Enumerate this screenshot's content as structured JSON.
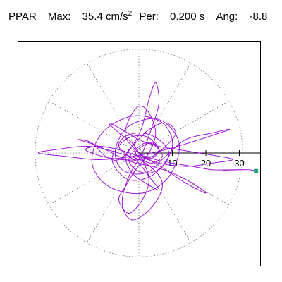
{
  "header": {
    "station_label": "PPAR",
    "max_label": "Max:",
    "max_value": "35.4 cm/s",
    "max_unit_exp": "2",
    "per_label": "Per:",
    "per_value": "0.200 s",
    "ang_label": "Ang:",
    "ang_value": "-8.8"
  },
  "chart_data": {
    "type": "polar-hodogram",
    "title": "",
    "xlabel": "",
    "ylabel": "",
    "radial_ticks": [
      10,
      20,
      30
    ],
    "radial_tick_labels": [
      "10",
      "20",
      "30"
    ],
    "radial_range": [
      0,
      31
    ],
    "grid": {
      "rings": [
        10,
        20,
        30
      ],
      "spoke_step_deg": 30,
      "style": "dotted"
    },
    "max": 35.4,
    "max_unit": "cm/s²",
    "period_s": 0.2,
    "angle_deg": -8.8,
    "trace_color": "#9400D3",
    "marker_color": "#20A080",
    "end_point": [
      35.4,
      -8.8
    ],
    "trace_points": [
      [
        0,
        0
      ],
      [
        3,
        -2
      ],
      [
        6,
        1
      ],
      [
        2,
        5
      ],
      [
        -4,
        4
      ],
      [
        -8,
        -2
      ],
      [
        -3,
        -8
      ],
      [
        5,
        -6
      ],
      [
        10,
        2
      ],
      [
        7,
        9
      ],
      [
        -2,
        11
      ],
      [
        -11,
        6
      ],
      [
        -14,
        -3
      ],
      [
        -9,
        -10
      ],
      [
        1,
        -12
      ],
      [
        9,
        -7
      ],
      [
        12,
        3
      ],
      [
        6,
        10
      ],
      [
        -3,
        8
      ],
      [
        -7,
        1
      ],
      [
        -5,
        -5
      ],
      [
        2,
        -6
      ],
      [
        8,
        -1
      ],
      [
        14,
        4
      ],
      [
        22,
        6
      ],
      [
        27,
        7
      ],
      [
        18,
        4
      ],
      [
        8,
        1
      ],
      [
        -2,
        -1
      ],
      [
        -12,
        -2
      ],
      [
        -22,
        -1
      ],
      [
        -30,
        0
      ],
      [
        -25,
        1
      ],
      [
        -15,
        2
      ],
      [
        -6,
        0
      ],
      [
        2,
        -3
      ],
      [
        7,
        -9
      ],
      [
        4,
        -16
      ],
      [
        -2,
        -20
      ],
      [
        -5,
        -15
      ],
      [
        -3,
        -7
      ],
      [
        1,
        0
      ],
      [
        4,
        8
      ],
      [
        6,
        15
      ],
      [
        5,
        21
      ],
      [
        3,
        16
      ],
      [
        1,
        8
      ],
      [
        -2,
        2
      ],
      [
        -6,
        -2
      ],
      [
        -10,
        -1
      ],
      [
        -14,
        3
      ],
      [
        -18,
        4
      ],
      [
        -12,
        2
      ],
      [
        -6,
        -1
      ],
      [
        -1,
        -3
      ],
      [
        4,
        -4
      ],
      [
        10,
        -6
      ],
      [
        16,
        -9
      ],
      [
        20,
        -12
      ],
      [
        14,
        -9
      ],
      [
        8,
        -5
      ],
      [
        3,
        -2
      ],
      [
        -1,
        1
      ],
      [
        -4,
        5
      ],
      [
        -3,
        10
      ],
      [
        0,
        14
      ],
      [
        3,
        12
      ],
      [
        5,
        6
      ],
      [
        3,
        0
      ],
      [
        -1,
        -5
      ],
      [
        -4,
        -10
      ],
      [
        -6,
        -14
      ],
      [
        -3,
        -18
      ],
      [
        1,
        -14
      ],
      [
        3,
        -8
      ],
      [
        1,
        -2
      ],
      [
        -2,
        3
      ],
      [
        -6,
        6
      ],
      [
        -9,
        9
      ],
      [
        -5,
        7
      ],
      [
        0,
        4
      ],
      [
        6,
        2
      ],
      [
        12,
        1
      ],
      [
        18,
        0
      ],
      [
        24,
        -1
      ],
      [
        28,
        -2
      ],
      [
        22,
        -3
      ],
      [
        14,
        -4
      ],
      [
        6,
        -3
      ],
      [
        0,
        -1
      ],
      [
        -6,
        1
      ],
      [
        -12,
        2
      ],
      [
        -16,
        1
      ],
      [
        -11,
        -1
      ],
      [
        -5,
        -2
      ],
      [
        0,
        -2
      ],
      [
        4,
        -1
      ],
      [
        8,
        2
      ],
      [
        11,
        6
      ],
      [
        8,
        9
      ],
      [
        3,
        7
      ],
      [
        -1,
        3
      ],
      [
        -4,
        -1
      ],
      [
        -2,
        -6
      ],
      [
        2,
        -9
      ],
      [
        6,
        -11
      ],
      [
        3,
        -7
      ],
      [
        0,
        -3
      ],
      [
        -3,
        -1
      ],
      [
        -6,
        2
      ],
      [
        -4,
        5
      ],
      [
        1,
        6
      ],
      [
        6,
        4
      ],
      [
        9,
        0
      ],
      [
        7,
        -4
      ],
      [
        3,
        -6
      ],
      [
        -1,
        -5
      ],
      [
        -3,
        -2
      ],
      [
        -1,
        1
      ],
      [
        2,
        3
      ],
      [
        5,
        2
      ],
      [
        7,
        -1
      ],
      [
        4,
        -3
      ],
      [
        1,
        -2
      ],
      [
        -1,
        0
      ],
      [
        1,
        2
      ],
      [
        4,
        3
      ],
      [
        6,
        1
      ],
      [
        4,
        -1
      ],
      [
        2,
        -1
      ],
      [
        5,
        -2
      ],
      [
        10,
        -3
      ],
      [
        16,
        -4
      ],
      [
        22,
        -5
      ],
      [
        28,
        -5
      ],
      [
        33,
        -5
      ],
      [
        35.4,
        -5.5
      ]
    ]
  }
}
